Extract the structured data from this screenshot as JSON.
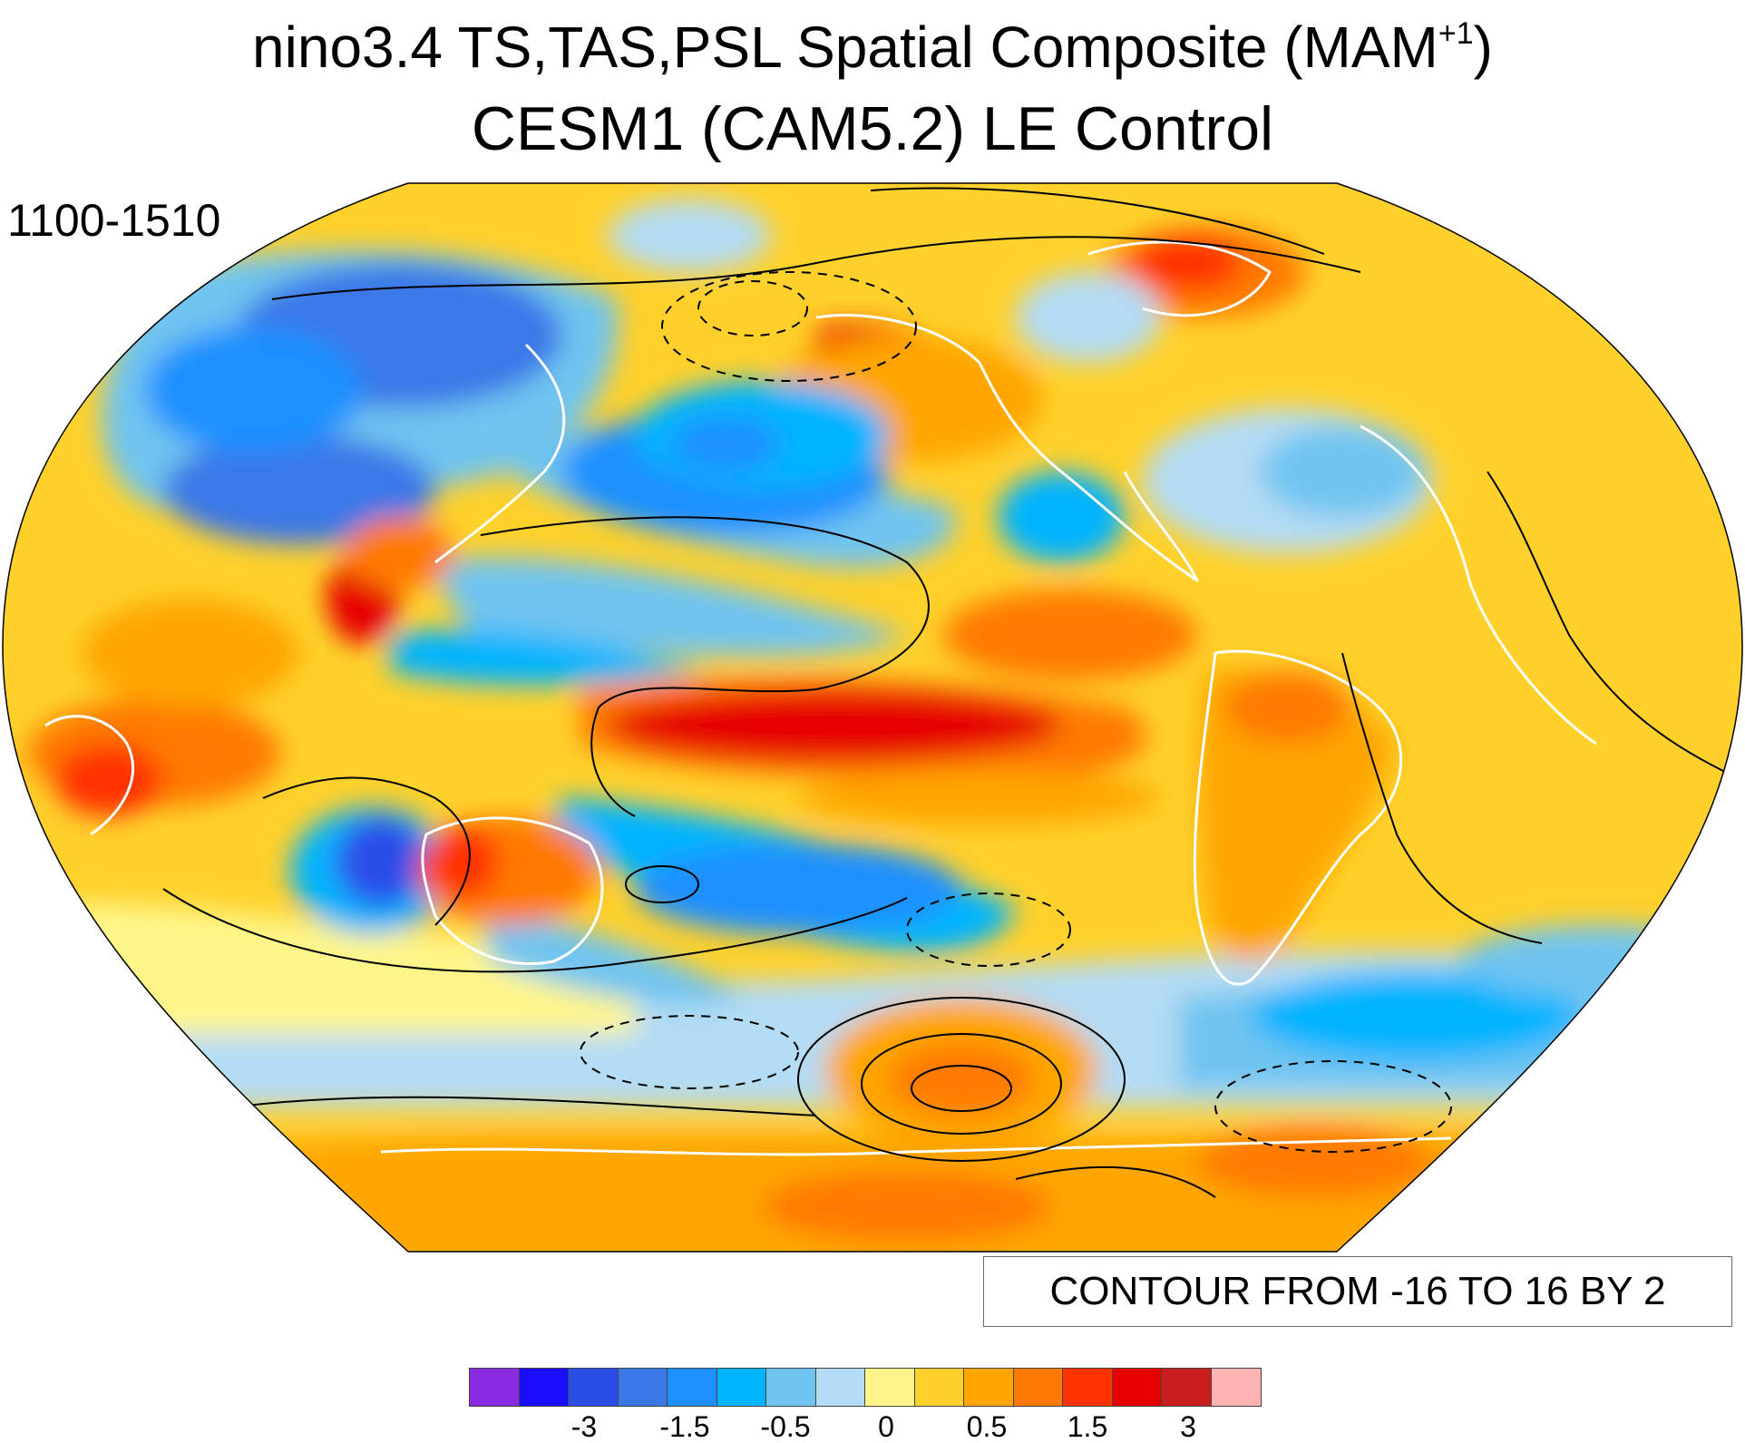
{
  "title": {
    "main": "nino3.4 TS,TAS,PSL Spatial Composite (MAM",
    "superscript": "+1",
    "close": ")",
    "subtitle": "CESM1 (CAM5.2) LE Control"
  },
  "period_label": "1100-1510",
  "contour_info": "CONTOUR FROM -16 TO 16 BY 2",
  "colorbar": {
    "colors": [
      "#8a2be2",
      "#1a0dff",
      "#2a4de8",
      "#3a78e8",
      "#1e90ff",
      "#00b4ff",
      "#6fc4f0",
      "#b4dcf4",
      "#fff68a",
      "#ffd12a",
      "#ffa600",
      "#ff7a00",
      "#ff3300",
      "#e60000",
      "#c81e1e",
      "#ffb4b4"
    ],
    "labels": [
      "-3",
      "-1.5",
      "-0.5",
      "0",
      "0.5",
      "1.5",
      "3"
    ],
    "label_boundaries": [
      2,
      4,
      6,
      8,
      10,
      12,
      14
    ]
  },
  "map": {
    "projection": "Robinson",
    "central_longitude": "Pacific (~200°E)",
    "shaded_variable": "TS, TAS",
    "contour_variable": "PSL",
    "contour_levels": "-16 to 16 by 2",
    "negative_contours": "dashed",
    "colors": {
      "ocean_land_default": "#ffd12a",
      "coastline": "#ffffff",
      "contour_line": "#000000"
    }
  }
}
